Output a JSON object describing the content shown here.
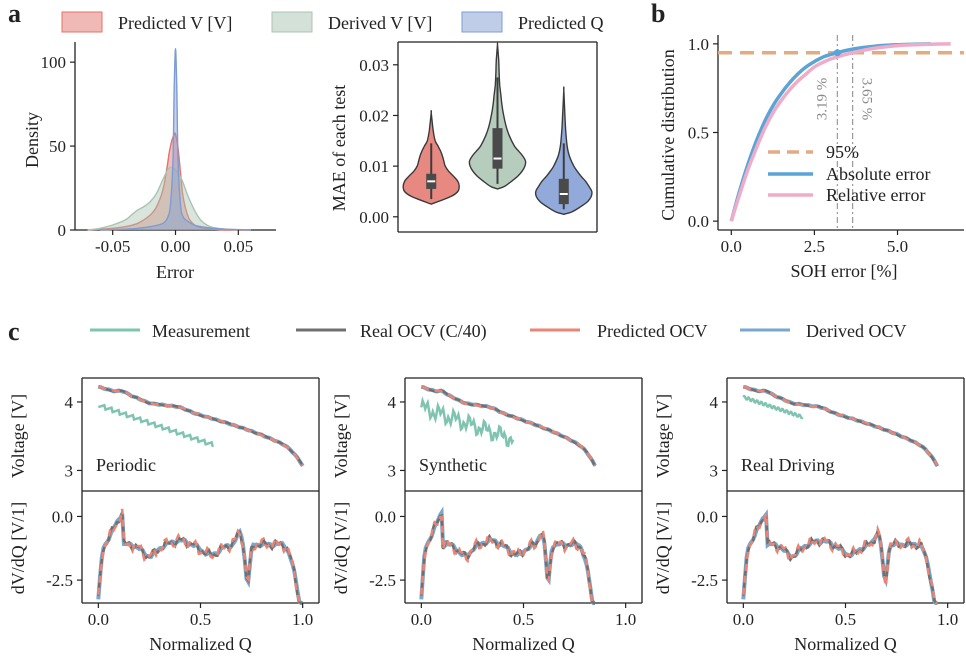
{
  "panel_labels": {
    "a": "a",
    "b": "b",
    "c": "c"
  },
  "colors": {
    "predicted_v": "#e3736b",
    "derived_v": "#a9c4b2",
    "predicted_q": "#7f9bd3",
    "measurement": "#7fc4b0",
    "real_ocv": "#707070",
    "predicted_ocv": "#ea8573",
    "derived_ocv": "#7aa7cf",
    "threshold": "#e2ab83",
    "absolute_error": "#5aa4d6",
    "relative_error": "#f0abc8"
  },
  "chart_data": [
    {
      "id": "a-density",
      "type": "area",
      "xlabel": "Error",
      "ylabel": "Density",
      "xlim": [
        -0.08,
        0.08
      ],
      "ylim": [
        0,
        112
      ],
      "xticks": [
        "-0.05",
        "0.00",
        "0.05"
      ],
      "xtick_values": [
        -0.05,
        0.0,
        0.05
      ],
      "yticks": [
        "0",
        "50",
        "100"
      ],
      "ytick_values": [
        0,
        50,
        100
      ],
      "legend": [
        "Predicted V [V]",
        "Derived V [V]",
        "Predicted Q"
      ],
      "series": [
        {
          "name": "Predicted V [V]",
          "color_key": "predicted_v",
          "x": [
            -0.07,
            -0.06,
            -0.05,
            -0.04,
            -0.03,
            -0.02,
            -0.015,
            -0.01,
            -0.007,
            -0.005,
            -0.003,
            -0.001,
            0.0,
            0.002,
            0.004,
            0.006,
            0.01,
            0.015,
            0.02,
            0.03,
            0.04,
            0.05,
            0.06
          ],
          "y": [
            0,
            0.5,
            1,
            2,
            4,
            9,
            14,
            24,
            36,
            46,
            53,
            57,
            57,
            49,
            34,
            20,
            8,
            3,
            1.5,
            0.5,
            0,
            0,
            0
          ]
        },
        {
          "name": "Derived V [V]",
          "color_key": "derived_v",
          "x": [
            -0.07,
            -0.06,
            -0.05,
            -0.04,
            -0.035,
            -0.03,
            -0.025,
            -0.02,
            -0.015,
            -0.01,
            -0.005,
            0.0,
            0.005,
            0.01,
            0.015,
            0.02,
            0.025,
            0.03,
            0.04,
            0.05
          ],
          "y": [
            0,
            1,
            3,
            6,
            9,
            12,
            14,
            17,
            22,
            30,
            37,
            36,
            30,
            20,
            12,
            6,
            3,
            1.5,
            0.5,
            0
          ]
        },
        {
          "name": "Predicted Q",
          "color_key": "predicted_q",
          "x": [
            -0.06,
            -0.04,
            -0.03,
            -0.02,
            -0.01,
            -0.006,
            -0.004,
            -0.002,
            -0.001,
            0.0,
            0.001,
            0.002,
            0.004,
            0.006,
            0.01,
            0.015,
            0.02,
            0.03,
            0.04,
            0.06
          ],
          "y": [
            0,
            0.5,
            1,
            2,
            4,
            8,
            15,
            42,
            85,
            108,
            85,
            42,
            15,
            8,
            5,
            3,
            2,
            1,
            0.5,
            0
          ]
        }
      ]
    },
    {
      "id": "a-violin",
      "type": "violin",
      "ylabel": "MAE of each test",
      "ylim": [
        -0.003,
        0.0345
      ],
      "yticks": [
        "0.00",
        "0.01",
        "0.02",
        "0.03"
      ],
      "ytick_values": [
        0,
        0.01,
        0.02,
        0.03
      ],
      "groups": [
        {
          "name": "Predicted V [V]",
          "color_key": "predicted_v",
          "y": [
            0.0025,
            0.004,
            0.005,
            0.006,
            0.007,
            0.008,
            0.009,
            0.01,
            0.011,
            0.012,
            0.013,
            0.014,
            0.015,
            0.017,
            0.0205
          ],
          "w": [
            0,
            0.7,
            0.95,
            1.0,
            0.95,
            0.8,
            0.62,
            0.5,
            0.45,
            0.4,
            0.33,
            0.24,
            0.14,
            0.07,
            0
          ],
          "q1": 0.0055,
          "median": 0.007,
          "q3": 0.0085,
          "min": 0.0035,
          "max": 0.0145
        },
        {
          "name": "Derived V [V]",
          "color_key": "derived_v",
          "y": [
            0.0055,
            0.006,
            0.007,
            0.008,
            0.009,
            0.01,
            0.011,
            0.012,
            0.013,
            0.014,
            0.016,
            0.018,
            0.02,
            0.022,
            0.024,
            0.026,
            0.028,
            0.03,
            0.032,
            0.034
          ],
          "w": [
            0,
            0.25,
            0.5,
            0.72,
            0.88,
            0.98,
            1.0,
            0.9,
            0.75,
            0.6,
            0.42,
            0.3,
            0.22,
            0.16,
            0.12,
            0.08,
            0.06,
            0.05,
            0.03,
            0
          ],
          "q1": 0.0095,
          "median": 0.0115,
          "q3": 0.0175,
          "min": 0.0065,
          "max": 0.0275
        },
        {
          "name": "Predicted Q",
          "color_key": "predicted_q",
          "y": [
            0.0005,
            0.001,
            0.002,
            0.003,
            0.004,
            0.005,
            0.006,
            0.007,
            0.008,
            0.009,
            0.01,
            0.012,
            0.014,
            0.017,
            0.02,
            0.025
          ],
          "w": [
            0,
            0.3,
            0.6,
            0.85,
            0.98,
            1.0,
            0.9,
            0.78,
            0.62,
            0.48,
            0.36,
            0.2,
            0.12,
            0.07,
            0.04,
            0
          ],
          "q1": 0.0025,
          "median": 0.0045,
          "q3": 0.0075,
          "min": 0.0015,
          "max": 0.0145
        }
      ]
    },
    {
      "id": "b-cdf",
      "type": "line",
      "xlabel": "SOH error [%]",
      "ylabel": "Cumulative distribution",
      "xlim": [
        -0.4,
        7.0
      ],
      "ylim": [
        -0.05,
        1.05
      ],
      "xticks": [
        "0.0",
        "2.5",
        "5.0"
      ],
      "xtick_values": [
        0,
        2.5,
        5.0
      ],
      "yticks": [
        "0.0",
        "0.5",
        "1.0"
      ],
      "ytick_values": [
        0,
        0.5,
        1.0
      ],
      "threshold": {
        "name": "95%",
        "value": 0.95
      },
      "annotations": [
        {
          "text": "3.19 %",
          "x": 3.19
        },
        {
          "text": "3.65 %",
          "x": 3.65
        }
      ],
      "series": [
        {
          "name": "Absolute error",
          "color_key": "absolute_error",
          "x": [
            0,
            0.25,
            0.5,
            0.75,
            1.0,
            1.25,
            1.5,
            1.75,
            2.0,
            2.25,
            2.5,
            2.75,
            3.0,
            3.19,
            3.5,
            4.0,
            4.5,
            5.0,
            5.5,
            6.0
          ],
          "y": [
            0,
            0.17,
            0.32,
            0.45,
            0.56,
            0.65,
            0.72,
            0.78,
            0.83,
            0.87,
            0.9,
            0.925,
            0.94,
            0.95,
            0.965,
            0.98,
            0.99,
            0.995,
            0.998,
            1.0
          ]
        },
        {
          "name": "Relative error",
          "color_key": "relative_error",
          "x": [
            0,
            0.25,
            0.5,
            0.75,
            1.0,
            1.25,
            1.5,
            1.75,
            2.0,
            2.25,
            2.5,
            2.75,
            3.0,
            3.25,
            3.65,
            4.0,
            4.5,
            5.0,
            5.5,
            6.0,
            6.6
          ],
          "y": [
            0,
            0.15,
            0.29,
            0.41,
            0.52,
            0.61,
            0.68,
            0.74,
            0.79,
            0.83,
            0.87,
            0.895,
            0.915,
            0.93,
            0.95,
            0.965,
            0.98,
            0.99,
            0.995,
            0.998,
            1.0
          ]
        }
      ]
    },
    {
      "id": "c-curves",
      "type": "line",
      "legend": [
        "Measurement",
        "Real OCV (C/40)",
        "Predicted OCV",
        "Derived OCV"
      ],
      "xlabel": "Normalized Q",
      "ylabel_top": "Voltage [V]",
      "ylabel_bottom": "dV/dQ [V/1]",
      "xlim": [
        -0.08,
        1.08
      ],
      "xticks": [
        "0.0",
        "0.5",
        "1.0"
      ],
      "xtick_values": [
        0,
        0.5,
        1.0
      ],
      "top_ylim": [
        2.7,
        4.35
      ],
      "top_yticks": [
        "3",
        "4"
      ],
      "top_ytick_values": [
        3,
        4
      ],
      "bottom_ylim": [
        -3.4,
        1.0
      ],
      "bottom_yticks": [
        "-2.5",
        "0.0"
      ],
      "bottom_ytick_values": [
        -2.5,
        0
      ],
      "panels": [
        {
          "label": "Periodic",
          "ocv_end": 1.0,
          "measurement": {
            "q_start": 0.0,
            "q_end": 0.56,
            "v_start": 3.96,
            "v_end": 3.38,
            "teeth": 16,
            "amp": 0.07,
            "kind": "saw"
          }
        },
        {
          "label": "Synthetic",
          "ocv_end": 0.85,
          "measurement": {
            "q_start": 0.0,
            "q_end": 0.45,
            "v_start": 3.92,
            "v_end": 3.45,
            "teeth": 12,
            "amp": 0.14,
            "kind": "noise"
          }
        },
        {
          "label": "Real Driving",
          "ocv_end": 0.95,
          "measurement": {
            "q_start": 0.0,
            "q_end": 0.29,
            "v_start": 4.07,
            "v_end": 3.78,
            "teeth": 14,
            "amp": 0.02,
            "kind": "small"
          }
        }
      ]
    }
  ]
}
